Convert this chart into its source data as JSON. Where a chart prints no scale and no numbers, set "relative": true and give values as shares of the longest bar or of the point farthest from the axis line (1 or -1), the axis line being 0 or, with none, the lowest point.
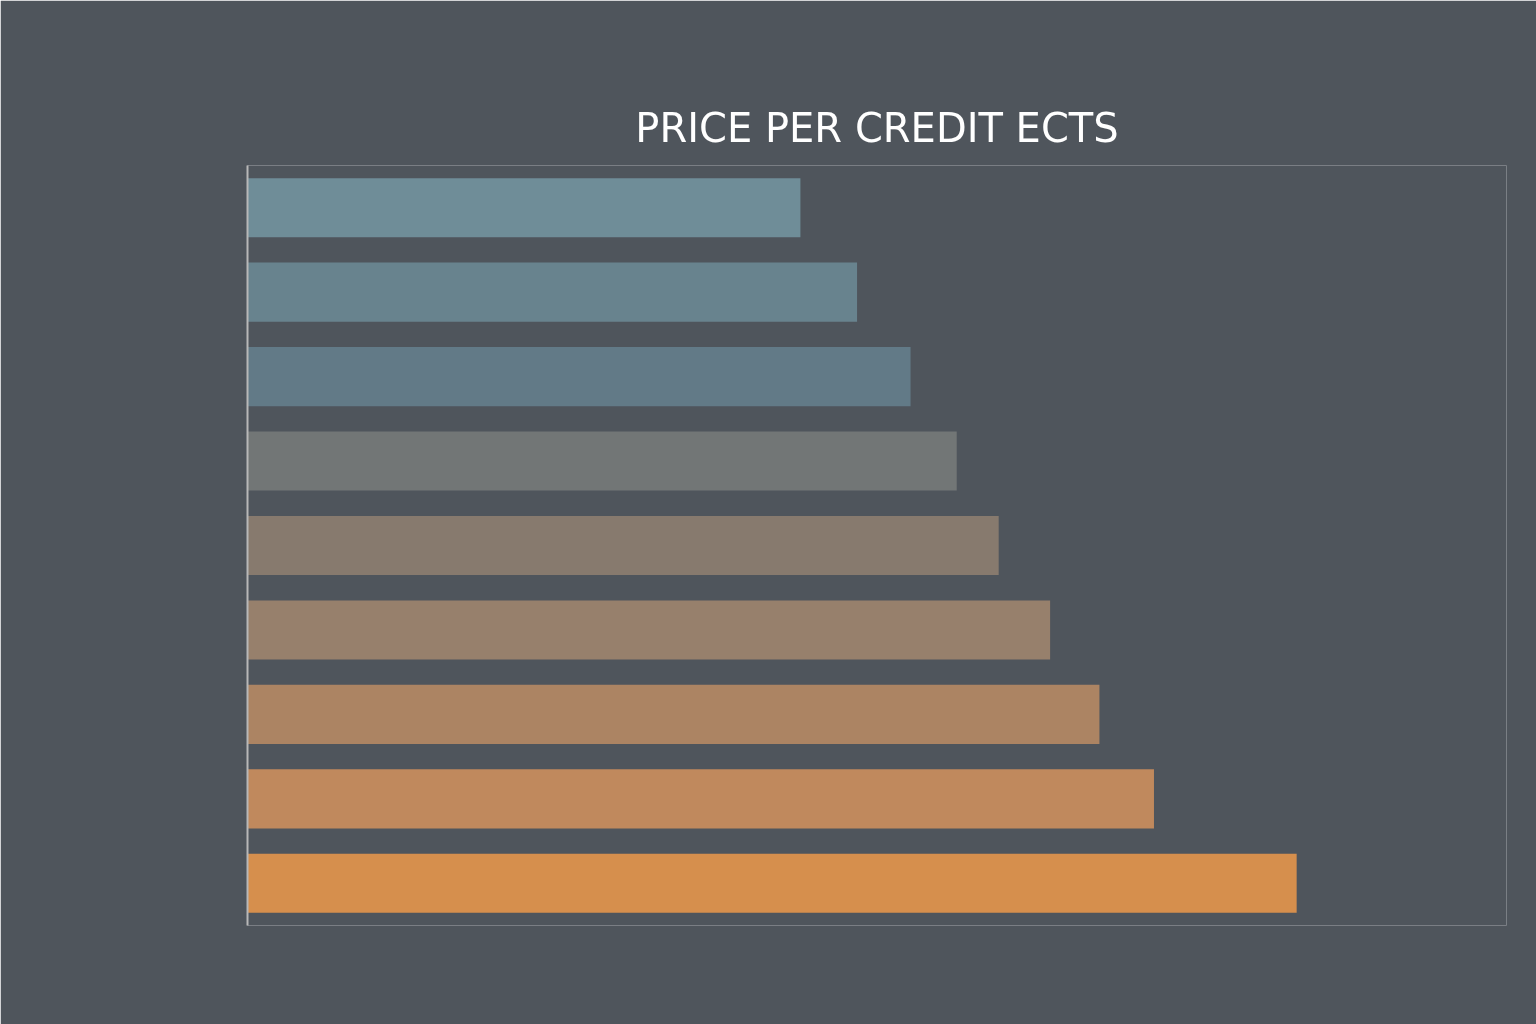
{
  "chart_data": {
    "type": "bar",
    "title": "PRICE PER CREDIT ECTS",
    "orientation": "horizontal",
    "relative": true,
    "categories": [
      null,
      null,
      null,
      null,
      null,
      null,
      null,
      null,
      null
    ],
    "values": [
      0.527,
      0.581,
      0.632,
      0.676,
      0.716,
      0.765,
      0.812,
      0.864,
      1.0
    ],
    "colors": [
      "#6f8d98",
      "#68838e",
      "#627a87",
      "#727676",
      "#877a6e",
      "#97806c",
      "#ac8463",
      "#c0895d",
      "#d68f4d"
    ]
  }
}
